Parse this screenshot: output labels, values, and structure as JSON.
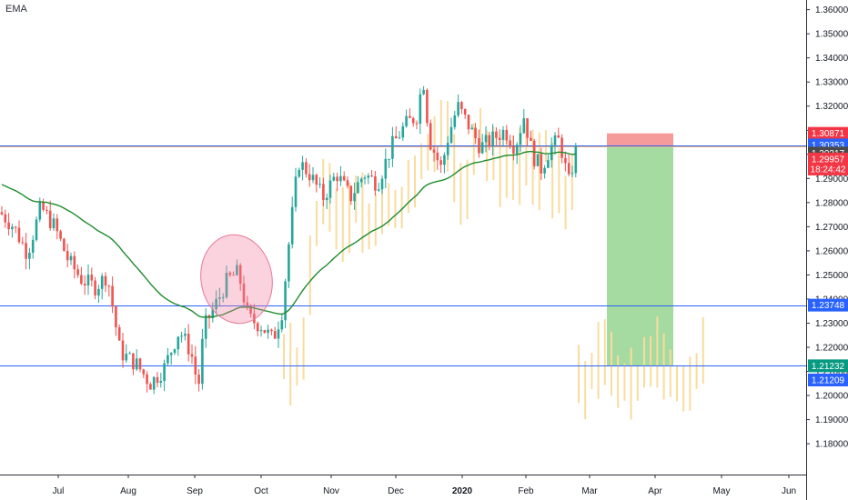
{
  "chart_data": {
    "type": "candlestick",
    "indicator_label": "EMA",
    "x_labels": [
      "Jul",
      "Aug",
      "Sep",
      "Oct",
      "Nov",
      "Dec",
      "2020",
      "Feb",
      "Mar",
      "Apr",
      "May",
      "Jun"
    ],
    "bold_x_label": "2020",
    "y_ticks": [
      1.36,
      1.35,
      1.34,
      1.33,
      1.32,
      1.31,
      1.3,
      1.29,
      1.28,
      1.27,
      1.26,
      1.25,
      1.24,
      1.23,
      1.22,
      1.21,
      1.2,
      1.19,
      1.18
    ],
    "ylim": [
      1.1725,
      1.3625
    ],
    "horizontal_lines": [
      {
        "price": 1.30353,
        "color": "#2962ff"
      },
      {
        "price": 1.23748,
        "color": "#2962ff"
      },
      {
        "price": 1.21232,
        "color": "#2962ff"
      },
      {
        "price": 1.30317,
        "color": "#f0b27a"
      }
    ],
    "price_tags": [
      {
        "price": 1.30871,
        "text": "1.30871",
        "color": "#f23645"
      },
      {
        "price": 1.30353,
        "text": "1.30353",
        "color": "#2962ff"
      },
      {
        "price": 1.30317,
        "text": "1.30317",
        "color": "#4a4a4a"
      },
      {
        "price": 1.29957,
        "text": "1.29957",
        "color": "#f23645"
      },
      {
        "price": 1.29957,
        "text": "18:24:42",
        "color": "#f23645",
        "offset_rows": 1
      },
      {
        "price": 1.23748,
        "text": "1.23748",
        "color": "#2962ff"
      },
      {
        "price": 1.21232,
        "text": "1.21232",
        "color": "#089981"
      },
      {
        "price": 1.21209,
        "text": "1.21209",
        "color": "#2962ff"
      }
    ],
    "position": {
      "entry": 1.30353,
      "stop": 1.30871,
      "target": 1.21232,
      "profit_color": "#a5dba0",
      "loss_color": "#f59b9b"
    },
    "ema_color": "#1e8c2e",
    "up_color": "#26a69a",
    "down_color": "#ef5350",
    "ghost_color": "#f8dca0"
  }
}
